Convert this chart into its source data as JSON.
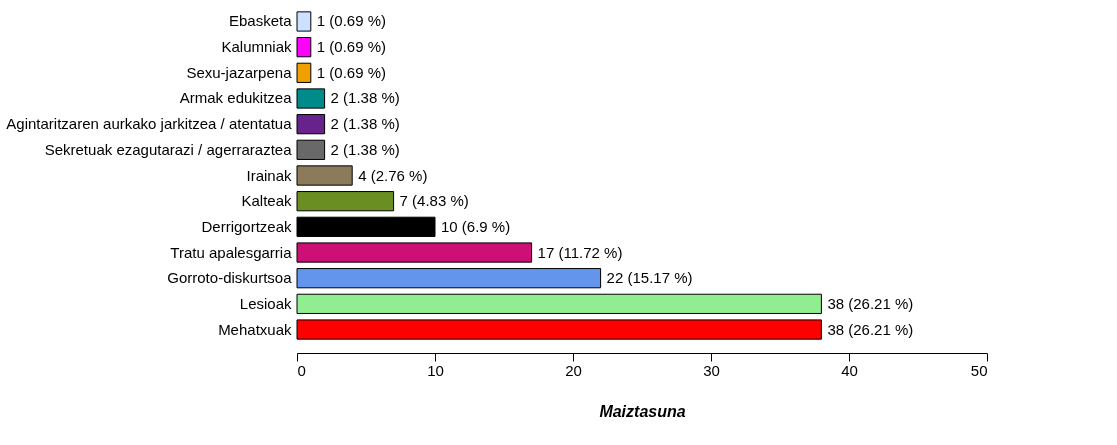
{
  "chart_data": {
    "type": "bar",
    "orientation": "horizontal",
    "xlabel": "Maiztasuna",
    "categories": [
      "Ebasketa",
      "Kalumniak",
      "Sexu-jazarpena",
      "Armak edukitzea",
      "Agintaritzaren aurkako jarkitzea / atentatua",
      "Sekretuak ezagutarazi / agerraraztea",
      "Irainak",
      "Kalteak",
      "Derrigortzeak",
      "Tratu apalesgarria",
      "Gorroto-diskurtsoa",
      "Lesioak",
      "Mehatxuak"
    ],
    "values": [
      1,
      1,
      1,
      2,
      2,
      2,
      4,
      7,
      10,
      17,
      22,
      38,
      38
    ],
    "colors": [
      "#cce0ff",
      "#ff00ff",
      "#f0a000",
      "#008b8b",
      "#68228b",
      "#696969",
      "#8b7b5b",
      "#6b8e23",
      "#000000",
      "#cd1076",
      "#6495ed",
      "#90ee90",
      "#ff0000"
    ],
    "value_labels": [
      "1 (0.69 %)",
      "1 (0.69 %)",
      "1 (0.69 %)",
      "2 (1.38 %)",
      "2 (1.38 %)",
      "2 (1.38 %)",
      "4 (2.76 %)",
      "7 (4.83 %)",
      "10 (6.9 %)",
      "17 (11.72 %)",
      "22 (15.17 %)",
      "38 (26.21 %)",
      "38 (26.21 %)"
    ],
    "xlim": [
      0,
      50
    ],
    "xticks": [
      0,
      10,
      20,
      30,
      40,
      50
    ],
    "grid": false
  }
}
